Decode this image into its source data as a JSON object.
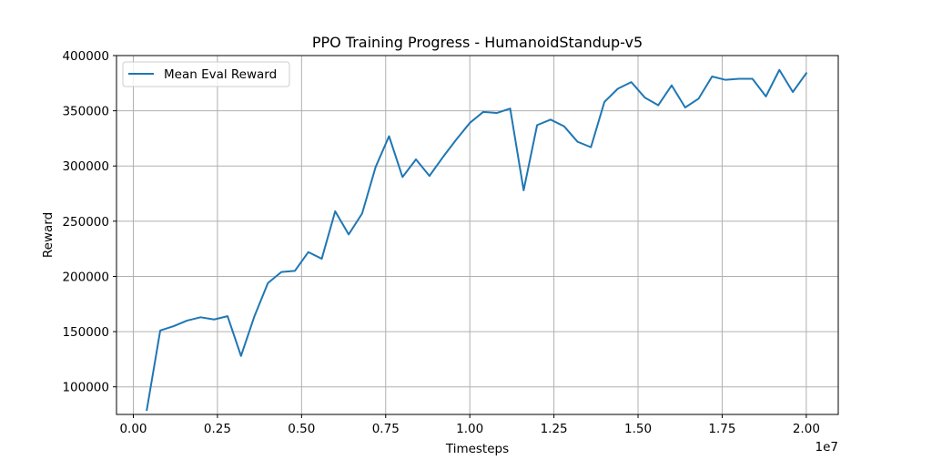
{
  "chart_data": {
    "type": "line",
    "title": "PPO Training Progress - HumanoidStandup-v5",
    "xlabel": "Timesteps",
    "ylabel": "Reward",
    "x_offset_label": "1e7",
    "xlim": [
      -500000,
      20950000
    ],
    "ylim": [
      75000,
      400000
    ],
    "x_ticks": [
      0,
      2500000,
      5000000,
      7500000,
      10000000,
      12500000,
      15000000,
      17500000,
      20000000
    ],
    "x_tick_labels": [
      "0.00",
      "0.25",
      "0.50",
      "0.75",
      "1.00",
      "1.25",
      "1.50",
      "1.75",
      "2.00"
    ],
    "y_ticks": [
      100000,
      150000,
      200000,
      250000,
      300000,
      350000,
      400000
    ],
    "y_tick_labels": [
      "100000",
      "150000",
      "200000",
      "250000",
      "300000",
      "350000",
      "400000"
    ],
    "grid": true,
    "legend_position": "top-left",
    "series": [
      {
        "name": "Mean Eval Reward",
        "color": "#1f77b4",
        "x": [
          400000,
          800000,
          1200000,
          1600000,
          2000000,
          2400000,
          2800000,
          3200000,
          3600000,
          4000000,
          4400000,
          4800000,
          5200000,
          5600000,
          6000000,
          6400000,
          6800000,
          7200000,
          7600000,
          8000000,
          8400000,
          8800000,
          9200000,
          9600000,
          10000000,
          10400000,
          10800000,
          11200000,
          11600000,
          12000000,
          12400000,
          12800000,
          13200000,
          13600000,
          14000000,
          14400000,
          14800000,
          15200000,
          15600000,
          16000000,
          16400000,
          16800000,
          17200000,
          17600000,
          18000000,
          18400000,
          18800000,
          19200000,
          19600000,
          20000000
        ],
        "y": [
          79000,
          151000,
          155000,
          160000,
          163000,
          161000,
          164000,
          128000,
          164000,
          194000,
          204000,
          205000,
          222000,
          216000,
          259000,
          238000,
          257000,
          299000,
          327000,
          290000,
          306000,
          291000,
          308000,
          324000,
          339000,
          349000,
          348000,
          352000,
          278000,
          337000,
          342000,
          336000,
          322000,
          317000,
          358000,
          370000,
          376000,
          362000,
          355000,
          373000,
          353000,
          361000,
          381000,
          378000,
          379000,
          379000,
          363000,
          387000,
          367000,
          384000
        ]
      }
    ]
  }
}
